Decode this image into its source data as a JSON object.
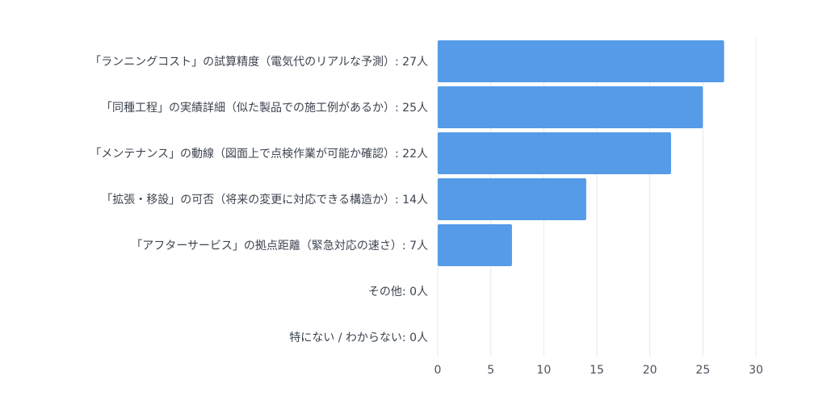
{
  "chart_data": {
    "type": "bar",
    "orientation": "horizontal",
    "categories": [
      "「ランニングコスト」の試算精度（電気代のリアルな予測）: 27人",
      "「同種工程」の実績詳細（似た製品での施工例があるか）: 25人",
      "「メンテナンス」の動線（図面上で点検作業が可能か確認）: 22人",
      "「拡張・移設」の可否（将来の変更に対応できる構造か）: 14人",
      "「アフターサービス」の拠点距離（緊急対応の速さ）: 7人",
      "その他: 0人",
      "特にない / わからない: 0人"
    ],
    "values": [
      27,
      25,
      22,
      14,
      7,
      0,
      0
    ],
    "xlim": [
      0,
      30
    ],
    "xticks": [
      "0",
      "5",
      "10",
      "15",
      "20",
      "25",
      "30"
    ],
    "grid": true,
    "bar_color": "#559be8",
    "title": "",
    "xlabel": "",
    "ylabel": ""
  }
}
